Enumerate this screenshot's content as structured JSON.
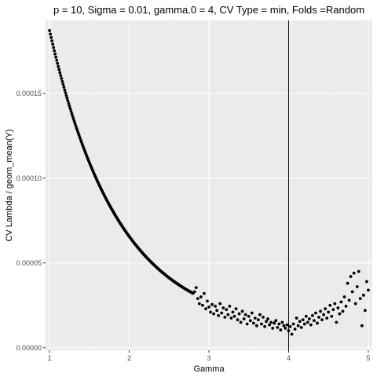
{
  "chart_data": {
    "type": "scatter",
    "title": "p = 10, Sigma = 0.01, gamma.0 = 4, CV Type = min, Folds =Random",
    "xlabel": "Gamma",
    "ylabel": "CV Lambda / geom_mean(Y)",
    "xlim": [
      0.95,
      5.05
    ],
    "ylim": [
      -1.5e-06,
      0.000193
    ],
    "x_ticks": [
      1,
      2,
      3,
      4,
      5
    ],
    "x_tick_labels": [
      "1",
      "2",
      "3",
      "4",
      "5"
    ],
    "y_ticks": [
      0,
      5e-05,
      0.0001,
      0.00015
    ],
    "y_tick_labels": [
      "0.00000",
      "0.00005",
      "0.00010",
      "0.00015"
    ],
    "grid": true,
    "vline": 4,
    "smooth": {
      "x_start": 1.0,
      "x_end": 2.8,
      "step": 0.01,
      "model": "0.0000102 + 0.0001768*exp(-1.16*(x-1)) ; last segment blends to data below"
    },
    "x": [
      1.0,
      1.05,
      1.1,
      1.15,
      1.2,
      1.25,
      1.3,
      1.35,
      1.4,
      1.45,
      1.5,
      1.55,
      1.6,
      1.65,
      1.7,
      1.75,
      1.8,
      1.85,
      1.9,
      1.95,
      2.0,
      2.05,
      2.1,
      2.15,
      2.2,
      2.25,
      2.3,
      2.35,
      2.4,
      2.45,
      2.5,
      2.55,
      2.6,
      2.65,
      2.7,
      2.75,
      2.8,
      2.82,
      2.84,
      2.86,
      2.88,
      2.9,
      2.92,
      2.94,
      2.96,
      2.98,
      3.0,
      3.02,
      3.04,
      3.06,
      3.08,
      3.1,
      3.12,
      3.14,
      3.16,
      3.18,
      3.2,
      3.22,
      3.24,
      3.26,
      3.28,
      3.3,
      3.32,
      3.34,
      3.36,
      3.38,
      3.4,
      3.42,
      3.44,
      3.46,
      3.48,
      3.5,
      3.52,
      3.54,
      3.56,
      3.58,
      3.6,
      3.62,
      3.64,
      3.66,
      3.68,
      3.7,
      3.72,
      3.74,
      3.76,
      3.78,
      3.8,
      3.82,
      3.84,
      3.86,
      3.88,
      3.9,
      3.92,
      3.94,
      3.96,
      3.98,
      4.0,
      4.02,
      4.04,
      4.06,
      4.08,
      4.1,
      4.12,
      4.14,
      4.16,
      4.18,
      4.2,
      4.22,
      4.24,
      4.26,
      4.28,
      4.3,
      4.32,
      4.34,
      4.36,
      4.38,
      4.4,
      4.42,
      4.44,
      4.46,
      4.48,
      4.5,
      4.52,
      4.54,
      4.56,
      4.58,
      4.6,
      4.62,
      4.64,
      4.66,
      4.68,
      4.7,
      4.72,
      4.74,
      4.76,
      4.78,
      4.8,
      4.82,
      4.84,
      4.86,
      4.88,
      4.9,
      4.92,
      4.94,
      4.96,
      4.98,
      5.0
    ],
    "y": [
      0.000186,
      0.000172,
      0.00016,
      0.000149,
      0.000139,
      0.00013,
      0.000121,
      0.000113,
      0.000106,
      9.95e-05,
      9.35e-05,
      8.8e-05,
      8.25e-05,
      7.75e-05,
      7.3e-05,
      6.85e-05,
      6.45e-05,
      6.05e-05,
      5.7e-05,
      5.37e-05,
      5.05e-05,
      4.76e-05,
      4.5e-05,
      4.27e-05,
      4.06e-05,
      3.86e-05,
      3.68e-05,
      3.51e-05,
      3.36e-05,
      3.22e-05,
      3.09e-05,
      2.97e-05,
      2.86e-05,
      2.76e-05,
      2.67e-05,
      2.59e-05,
      2.52e-05,
      3.3e-05,
      3.55e-05,
      2.9e-05,
      2.6e-05,
      3e-05,
      2.5e-05,
      3.2e-05,
      2.3e-05,
      2.75e-05,
      2.4e-05,
      2.1e-05,
      2.55e-05,
      2e-05,
      2.45e-05,
      2.2e-05,
      1.9e-05,
      2.6e-05,
      2.05e-05,
      2.35e-05,
      1.8e-05,
      2.25e-05,
      1.95e-05,
      2.45e-05,
      1.75e-05,
      2.1e-05,
      1.85e-05,
      2.3e-05,
      1.65e-05,
      2e-05,
      1.5e-05,
      2.15e-05,
      1.7e-05,
      1.95e-05,
      1.4e-05,
      1.85e-05,
      1.6e-05,
      2.05e-05,
      1.45e-05,
      1.75e-05,
      1.3e-05,
      1.65e-05,
      1.95e-05,
      1.4e-05,
      1.8e-05,
      1.25e-05,
      1.55e-05,
      1.7e-05,
      1.35e-05,
      1.5e-05,
      1.15e-05,
      1.45e-05,
      1.6e-05,
      1.2e-05,
      1.4e-05,
      1.05e-05,
      1.5e-05,
      1.3e-05,
      1.15e-05,
      1.35e-05,
      1e-05,
      1.25e-05,
      8e-06,
      1.4e-05,
      1.1e-05,
      1.75e-05,
      1.3e-05,
      1.55e-05,
      1.2e-05,
      1.65e-05,
      1.4e-05,
      1.85e-05,
      1.5e-05,
      1.7e-05,
      1.35e-05,
      1.9e-05,
      1.6e-05,
      2.05e-05,
      1.45e-05,
      1.8e-05,
      2.15e-05,
      1.65e-05,
      1.95e-05,
      2.3e-05,
      1.75e-05,
      2.1e-05,
      2.5e-05,
      1.85e-05,
      2.25e-05,
      2.6e-05,
      1.5e-05,
      2.35e-05,
      2e-05,
      2.7e-05,
      2.15e-05,
      3e-05,
      2.45e-05,
      3.8e-05,
      2.8e-05,
      4.2e-05,
      3.3e-05,
      4.4e-05,
      2.6e-05,
      3.6e-05,
      4.5e-05,
      2.9e-05,
      1.3e-05,
      3.1e-05,
      2.2e-05,
      3.9e-05,
      3.4e-05
    ]
  }
}
